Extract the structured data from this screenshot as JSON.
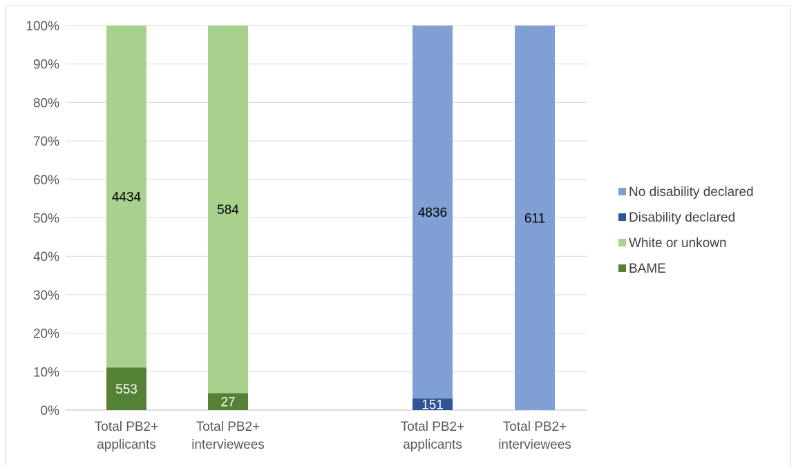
{
  "chart_data": {
    "type": "bar",
    "stacked": "percent",
    "ylim": [
      0,
      100
    ],
    "yticks": [
      "0%",
      "10%",
      "20%",
      "30%",
      "40%",
      "50%",
      "60%",
      "70%",
      "80%",
      "90%",
      "100%"
    ],
    "grid": true,
    "legend_position": "right",
    "categories": [
      [
        "Total PB2+",
        "applicants"
      ],
      [
        "Total PB2+",
        "interviewees"
      ],
      [
        "Total PB2+",
        "applicants"
      ],
      [
        "Total PB2+",
        "interviewees"
      ]
    ],
    "groups": [
      {
        "categories": [
          0,
          1
        ],
        "series": [
          {
            "name": "BAME",
            "color": "#548235",
            "label_color": "#ffffff",
            "values": [
              553,
              27
            ]
          },
          {
            "name": "White or unkown",
            "color": "#a9d18e",
            "label_color": "#000000",
            "values": [
              4434,
              584
            ]
          }
        ]
      },
      {
        "categories": [
          2,
          3
        ],
        "series": [
          {
            "name": "Disability declared",
            "color": "#2f5597",
            "label_color": "#ffffff",
            "values": [
              151,
              0
            ]
          },
          {
            "name": "No disability declared",
            "color": "#7f9fd5",
            "label_color": "#000000",
            "values": [
              4836,
              611
            ]
          }
        ]
      }
    ],
    "legend": [
      {
        "name": "No disability declared",
        "color": "#7f9fd5"
      },
      {
        "name": "Disability declared",
        "color": "#2f5597"
      },
      {
        "name": "White or unkown",
        "color": "#a9d18e"
      },
      {
        "name": "BAME",
        "color": "#548235"
      }
    ]
  }
}
